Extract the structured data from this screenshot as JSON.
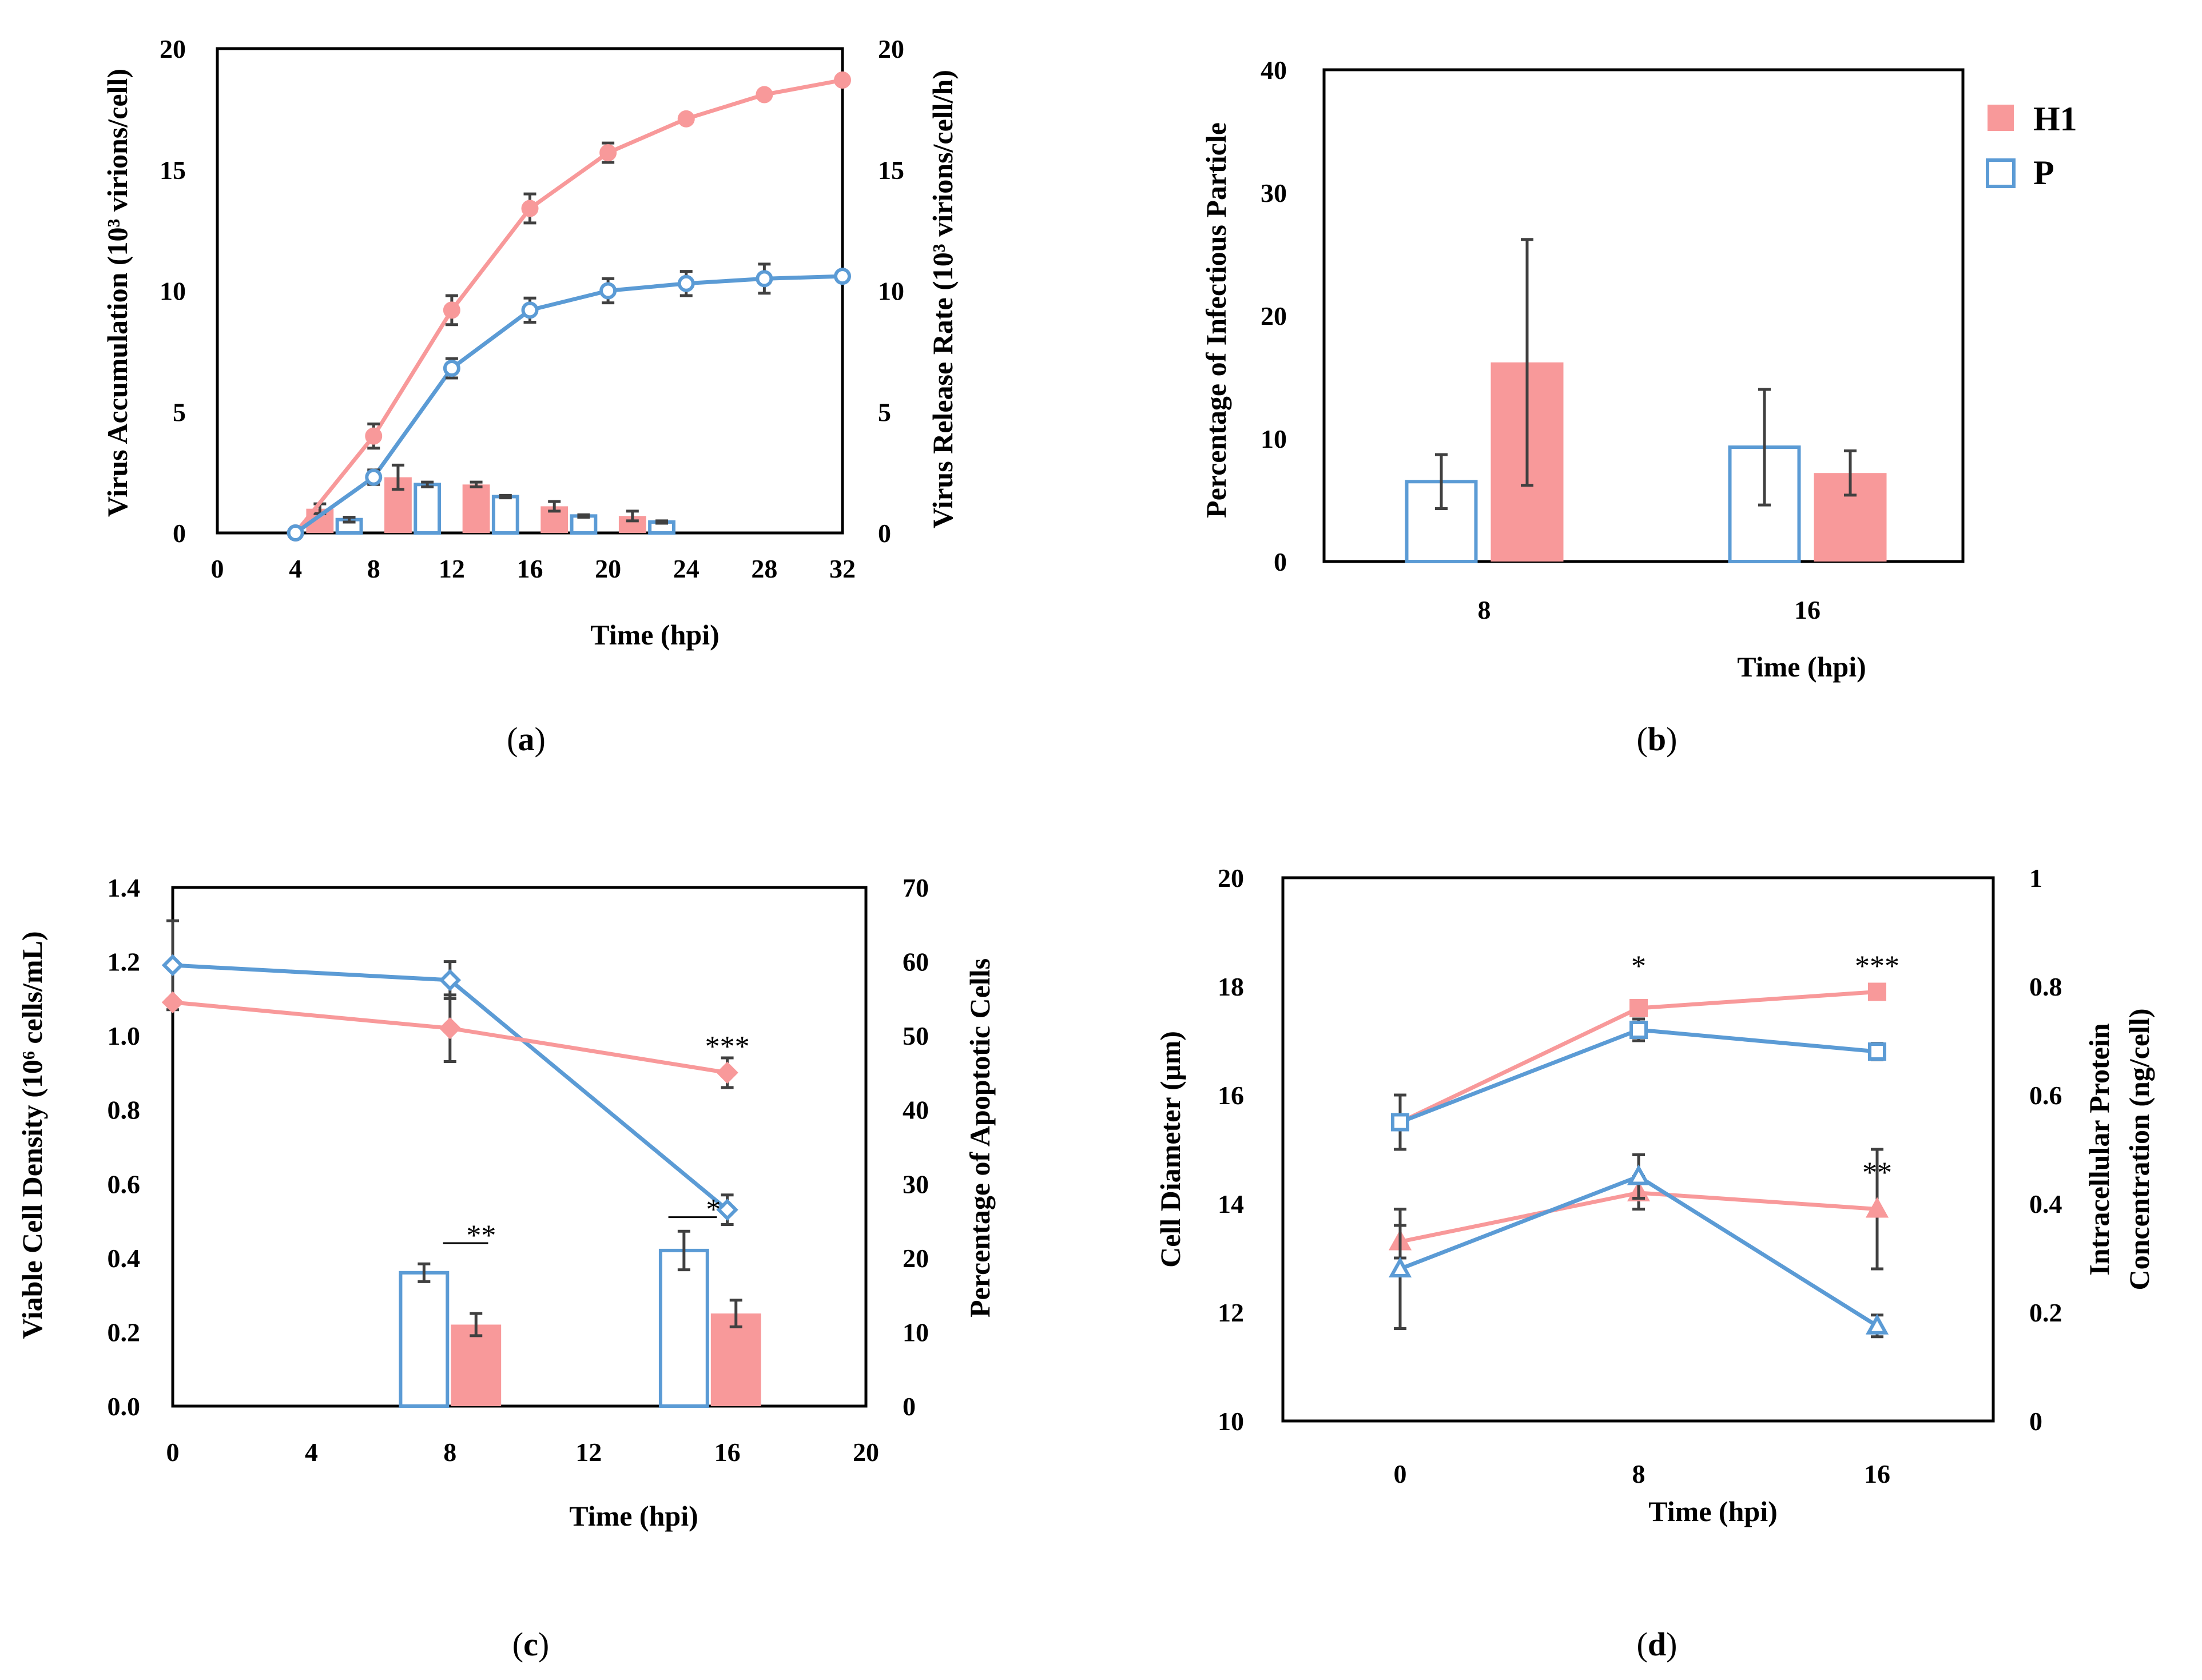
{
  "colors": {
    "h1": "#f8999a",
    "p": "#5b9bd5",
    "error": "#404040"
  },
  "figure": {
    "panel_labels": [
      {
        "open": "(",
        "letter": "a",
        "close": ")"
      },
      {
        "open": "(",
        "letter": "b",
        "close": ")"
      },
      {
        "open": "(",
        "letter": "c",
        "close": ")"
      },
      {
        "open": "(",
        "letter": "d",
        "close": ")"
      }
    ]
  },
  "chart_data": [
    {
      "id": "a",
      "type": "line+bar",
      "xlabel": "Time (hpi)",
      "ylabel": "Virus Accumulation (10³ virions/cell)",
      "ylabel_right": "Virus Release Rate (10³ virions/cell/h)",
      "xlim": [
        0,
        32
      ],
      "ylim": [
        0,
        20
      ],
      "ylim_right": [
        0,
        20
      ],
      "xticks": [
        0,
        4,
        8,
        12,
        16,
        20,
        24,
        28,
        32
      ],
      "yticks": [
        0,
        5,
        10,
        15,
        20
      ],
      "yticks_right": [
        0,
        5,
        10,
        15,
        20
      ],
      "lines": [
        {
          "name": "H1",
          "color": "h1",
          "marker": "filled-circle",
          "x": [
            4,
            8,
            12,
            16,
            20,
            24,
            28,
            32
          ],
          "y": [
            0,
            4.0,
            9.2,
            13.4,
            15.7,
            17.1,
            18.1,
            18.7
          ],
          "err": [
            0,
            0.5,
            0.6,
            0.6,
            0.4,
            0,
            0,
            0
          ]
        },
        {
          "name": "P",
          "color": "p",
          "marker": "open-circle",
          "x": [
            4,
            8,
            12,
            16,
            20,
            24,
            28,
            32
          ],
          "y": [
            0,
            2.3,
            6.8,
            9.2,
            10.0,
            10.3,
            10.5,
            10.6
          ],
          "err": [
            0,
            0.3,
            0.4,
            0.5,
            0.5,
            0.5,
            0.6,
            0
          ]
        }
      ],
      "bars": [
        {
          "name": "H1",
          "fill": "filled",
          "x": [
            5.25,
            9.25,
            13.25,
            17.25,
            21.25
          ],
          "y": [
            1.0,
            2.3,
            2.0,
            1.1,
            0.7
          ],
          "err": [
            0.2,
            0.5,
            0.1,
            0.2,
            0.2
          ]
        },
        {
          "name": "P",
          "fill": "open",
          "x": [
            6.75,
            10.75,
            14.75,
            18.75,
            22.75
          ],
          "y": [
            0.55,
            2.0,
            1.5,
            0.7,
            0.45
          ],
          "err": [
            0.1,
            0.1,
            0.05,
            0.05,
            0.05
          ]
        }
      ],
      "bar_width": 1.4
    },
    {
      "id": "b",
      "type": "bar",
      "xlabel": "Time (hpi)",
      "ylabel": "Percentage of Infectious Particle",
      "categories": [
        "8",
        "16"
      ],
      "ylim": [
        0,
        40
      ],
      "yticks": [
        0,
        10,
        20,
        30,
        40
      ],
      "series": [
        {
          "name": "P",
          "fill": "open",
          "values": [
            6.5,
            9.3
          ],
          "err": [
            2.2,
            4.7
          ]
        },
        {
          "name": "H1",
          "fill": "filled",
          "values": [
            16.2,
            7.2
          ],
          "err": [
            10.0,
            1.8
          ]
        }
      ],
      "legend": {
        "position": "outside-right",
        "entries": [
          "H1",
          "P"
        ]
      }
    },
    {
      "id": "c",
      "type": "line+bar",
      "xlabel": "Time (hpi)",
      "ylabel": "Viable Cell Density (10⁶ cells/mL)",
      "ylabel_right": "Percentage of Apoptotic Cells",
      "xlim": [
        0,
        20
      ],
      "ylim": [
        0,
        1.4
      ],
      "ylim_right": [
        0,
        70
      ],
      "xticks": [
        0,
        4,
        8,
        12,
        16,
        20
      ],
      "yticks": [
        "0.0",
        "0.2",
        "0.4",
        "0.6",
        "0.8",
        "1.0",
        "1.2",
        "1.4"
      ],
      "yticks_right": [
        0,
        10,
        20,
        30,
        40,
        50,
        60,
        70
      ],
      "lines": [
        {
          "name": "P",
          "color": "p",
          "marker": "open-diamond",
          "x": [
            0,
            8,
            16
          ],
          "y": [
            1.19,
            1.15,
            0.53
          ],
          "err": [
            0.12,
            0.05,
            0.04
          ]
        },
        {
          "name": "H1",
          "color": "h1",
          "marker": "filled-diamond",
          "x": [
            0,
            8,
            16
          ],
          "y": [
            1.09,
            1.02,
            0.9
          ],
          "err": [
            0,
            0.09,
            0.04
          ]
        }
      ],
      "bars": [
        {
          "name": "P",
          "fill": "open",
          "x": [
            7.25,
            14.75
          ],
          "y": [
            18,
            21
          ],
          "err": [
            1.2,
            2.6
          ]
        },
        {
          "name": "H1",
          "fill": "filled",
          "x": [
            8.75,
            16.25
          ],
          "y": [
            11,
            12.5
          ],
          "err": [
            1.5,
            1.8
          ]
        }
      ],
      "bar_width": 1.45,
      "annotations": [
        {
          "text": "***",
          "x": 16,
          "y": 0.96,
          "axis": "left"
        },
        {
          "text": "**",
          "x": 8.9,
          "y": 0.45,
          "axis": "left"
        },
        {
          "text": "*",
          "x": 15.6,
          "y": 0.52,
          "axis": "left"
        }
      ],
      "brackets": [
        {
          "x1": 7.8,
          "x2": 9.1,
          "y": 0.44,
          "axis": "left"
        },
        {
          "x1": 14.3,
          "x2": 15.7,
          "y": 0.51,
          "axis": "left"
        }
      ]
    },
    {
      "id": "d",
      "type": "line",
      "xlabel": "Time (hpi)",
      "ylabel": "Cell Diameter (µm)",
      "ylabel_right": "Intracellular Protein\nConcentration  (ng/cell)",
      "ylabel_right_lines": [
        "Intracellular Protein",
        "Concentration  (ng/cell)"
      ],
      "categories": [
        "0",
        "8",
        "16"
      ],
      "ylim": [
        10,
        20
      ],
      "ylim_right": [
        0,
        1
      ],
      "yticks": [
        10,
        12,
        14,
        16,
        18,
        20
      ],
      "yticks_right": [
        0,
        0.2,
        0.4,
        0.6,
        0.8,
        1
      ],
      "lines": [
        {
          "name": "H1 diameter",
          "color": "h1",
          "marker": "filled-square",
          "axis": "left",
          "x": [
            0,
            8,
            16
          ],
          "y": [
            15.5,
            17.6,
            17.9
          ],
          "err": [
            0.5,
            0.1,
            0.1
          ]
        },
        {
          "name": "P diameter",
          "color": "p",
          "marker": "open-square",
          "axis": "left",
          "x": [
            0,
            8,
            16
          ],
          "y": [
            15.5,
            17.2,
            16.8
          ],
          "err": [
            0.5,
            0.2,
            0.15
          ]
        },
        {
          "name": "H1 protein",
          "color": "h1",
          "marker": "filled-triangle",
          "axis": "right",
          "x": [
            0,
            8,
            16
          ],
          "y": [
            0.33,
            0.42,
            0.39
          ],
          "err": [
            0.03,
            0.03,
            0.11
          ]
        },
        {
          "name": "P protein",
          "color": "p",
          "marker": "open-triangle",
          "axis": "right",
          "x": [
            0,
            8,
            16
          ],
          "y": [
            0.28,
            0.45,
            0.175
          ],
          "err": [
            0.11,
            0.04,
            0.02
          ]
        }
      ],
      "annotations": [
        {
          "text": "*",
          "x": 8,
          "y": 18.3,
          "axis": "left"
        },
        {
          "text": "***",
          "x": 16,
          "y": 18.3,
          "axis": "left"
        },
        {
          "text": "**",
          "x": 16,
          "y": 14.5,
          "axis": "left"
        }
      ]
    }
  ]
}
